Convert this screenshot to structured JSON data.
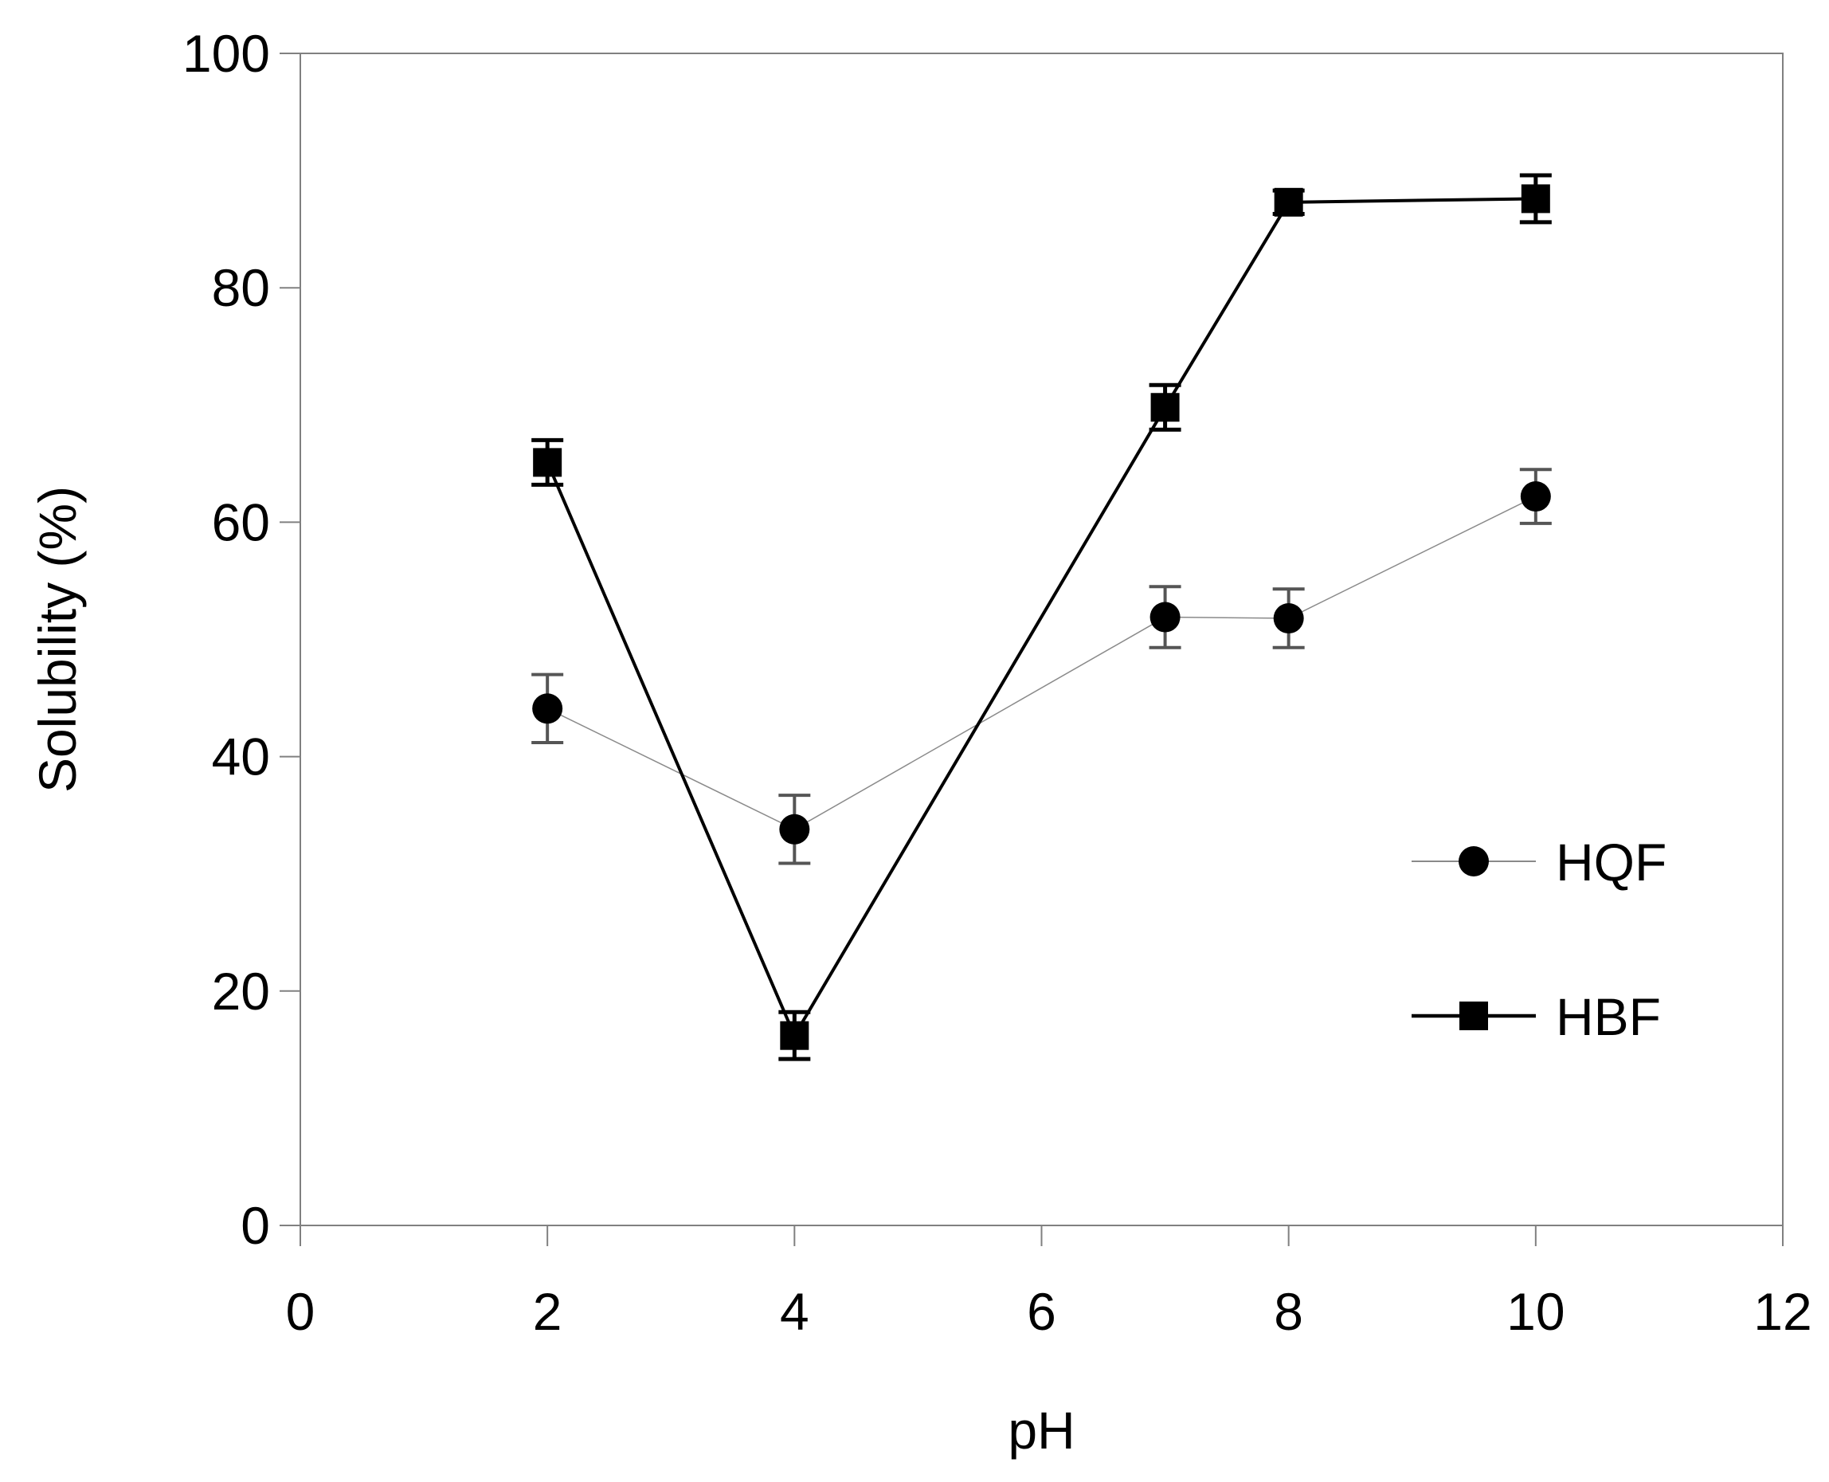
{
  "chart_data": {
    "type": "line",
    "xlabel": "pH",
    "ylabel": "Solubility (%)",
    "xlim": [
      0,
      12
    ],
    "ylim": [
      0,
      100
    ],
    "xticks": [
      0,
      2,
      4,
      6,
      8,
      10,
      12
    ],
    "yticks": [
      0,
      20,
      40,
      60,
      80,
      100
    ],
    "grid": false,
    "legend_position": "right",
    "series": [
      {
        "name": "HQF",
        "marker": "circle",
        "line_color": "#8a8a8a",
        "marker_color": "#000000",
        "errorbar_color": "#555555",
        "x": [
          2,
          4,
          7,
          8,
          10
        ],
        "y": [
          44.1,
          33.8,
          51.9,
          51.8,
          62.2
        ],
        "error": [
          2.9,
          2.9,
          2.6,
          2.5,
          2.3
        ]
      },
      {
        "name": "HBF",
        "marker": "square",
        "line_color": "#000000",
        "marker_color": "#000000",
        "errorbar_color": "#000000",
        "x": [
          2,
          4,
          7,
          8,
          10
        ],
        "y": [
          65.1,
          16.2,
          69.8,
          87.3,
          87.6
        ],
        "error": [
          1.9,
          2.0,
          1.9,
          1.0,
          2.0
        ]
      }
    ]
  }
}
